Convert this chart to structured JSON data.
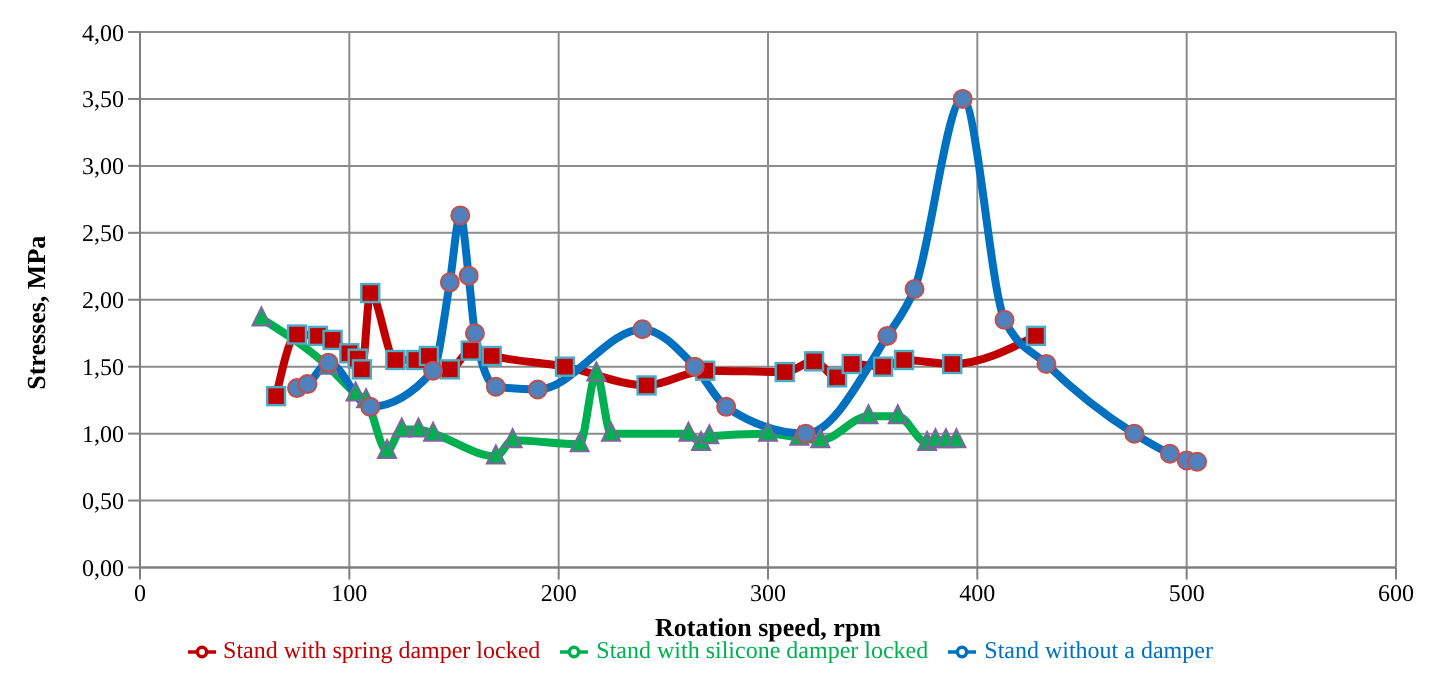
{
  "chart_data": {
    "type": "line",
    "xlabel": "Rotation speed, rpm",
    "ylabel": "Stresses, MPa",
    "xlim": [
      0,
      600
    ],
    "xticks": [
      0,
      100,
      200,
      300,
      400,
      500,
      600
    ],
    "ylim": [
      0,
      4
    ],
    "yticks": [
      {
        "value": 0,
        "label": "0,00"
      },
      {
        "value": 0.5,
        "label": "0,50"
      },
      {
        "value": 1,
        "label": "1,00"
      },
      {
        "value": 1.5,
        "label": "1,50"
      },
      {
        "value": 2,
        "label": "2,00"
      },
      {
        "value": 2.5,
        "label": "2,50"
      },
      {
        "value": 3,
        "label": "3,00"
      },
      {
        "value": 3.5,
        "label": "3,50"
      },
      {
        "value": 4,
        "label": "4,00"
      }
    ],
    "grid": true,
    "legend": "bottom",
    "series": [
      {
        "name": "Stand without a damper",
        "color": "#0070c0",
        "marker": "circle",
        "x": [
          75,
          80,
          90,
          110,
          140,
          148,
          153,
          157,
          160,
          170,
          190,
          240,
          265,
          280,
          318,
          357,
          370,
          393,
          413,
          433,
          475,
          492,
          500,
          505
        ],
        "values": [
          1.34,
          1.37,
          1.53,
          1.2,
          1.47,
          2.13,
          2.63,
          2.18,
          1.75,
          1.35,
          1.33,
          1.78,
          1.5,
          1.2,
          1.0,
          1.73,
          2.08,
          3.5,
          1.85,
          1.52,
          1.0,
          0.85,
          0.8,
          0.79
        ]
      },
      {
        "name": "Stand with silicone damper locked",
        "color": "#00b050",
        "marker": "triangle",
        "x": [
          58,
          90,
          103,
          108,
          118,
          125,
          133,
          140,
          170,
          178,
          210,
          218,
          225,
          262,
          268,
          272,
          300,
          315,
          325,
          348,
          362,
          376,
          380,
          385,
          390
        ],
        "values": [
          1.86,
          1.5,
          1.3,
          1.25,
          0.87,
          1.03,
          1.03,
          1.0,
          0.83,
          0.95,
          0.92,
          1.45,
          1.0,
          1.0,
          0.93,
          0.98,
          1.0,
          0.97,
          0.95,
          1.13,
          1.13,
          0.93,
          0.95,
          0.95,
          0.95
        ]
      },
      {
        "name": "Stand with spring damper locked",
        "color": "#c00000",
        "marker": "square",
        "x": [
          65,
          75,
          85,
          92,
          100,
          104,
          106,
          110,
          122,
          132,
          138,
          148,
          158,
          168,
          203,
          242,
          270,
          308,
          322,
          333,
          340,
          355,
          365,
          388,
          428
        ],
        "values": [
          1.28,
          1.74,
          1.73,
          1.7,
          1.6,
          1.56,
          1.48,
          2.05,
          1.55,
          1.55,
          1.58,
          1.48,
          1.62,
          1.58,
          1.5,
          1.36,
          1.47,
          1.46,
          1.54,
          1.42,
          1.52,
          1.5,
          1.55,
          1.52,
          1.73
        ]
      }
    ]
  }
}
